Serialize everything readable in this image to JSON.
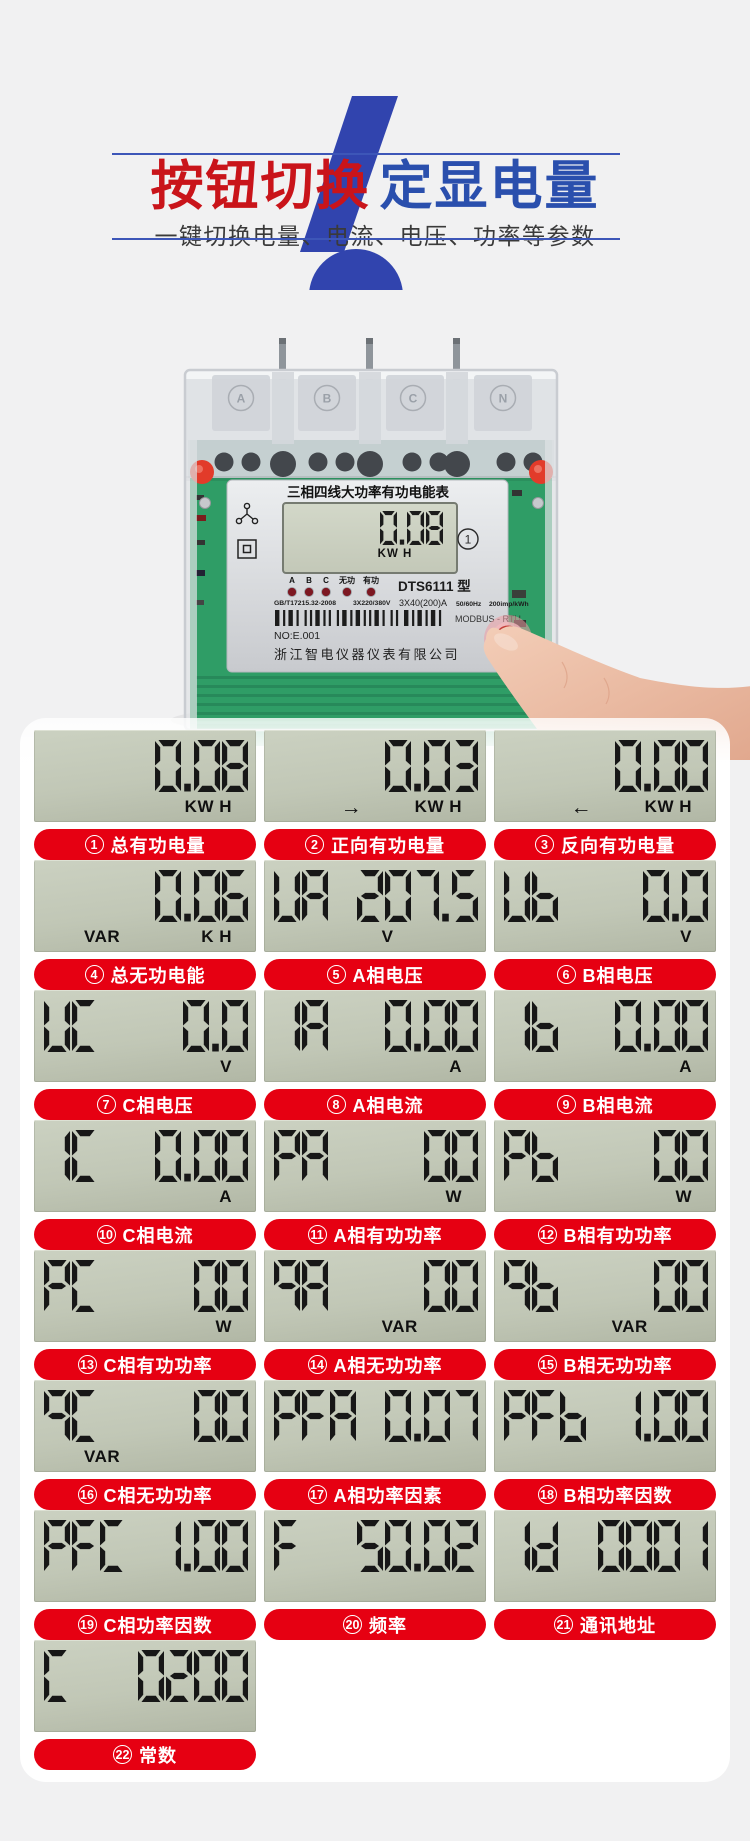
{
  "header": {
    "big_numeral": "6",
    "title_red": "按钮切换",
    "title_blue": "定显电量",
    "subtitle": "一键切换电量、电流、电压、功率等参数"
  },
  "meter": {
    "top_label": "三相四线大功率有功电能表",
    "terminals": [
      "A",
      "B",
      "C",
      "N"
    ],
    "lcd_value": "0.08",
    "lcd_unit": "KW H",
    "lcd_badge_num": "1",
    "indicators": [
      "A",
      "B",
      "C",
      "无功",
      "有功"
    ],
    "model": "DTS6111 型",
    "spec_a": "GB/T17215.32-2008",
    "spec_b": "3X220/380V",
    "spec_c": "3X40(200)A",
    "spec_d": "50/60Hz",
    "spec_e": "200imp/kWh",
    "protocol": "MODBUS - RTU",
    "serial": "NO:E.001",
    "company": "浙江智电仪器仪表有限公司"
  },
  "panels": [
    {
      "num": "1",
      "label": "总有功电量",
      "prefix": "",
      "value": "0.08",
      "arrow": "",
      "unit_left": "",
      "unit_center": "",
      "unit_right": "KW H"
    },
    {
      "num": "2",
      "label": "正向有功电量",
      "prefix": "",
      "value": "0.03",
      "arrow": "→",
      "unit_left": "",
      "unit_center": "",
      "unit_right": "KW H"
    },
    {
      "num": "3",
      "label": "反向有功电量",
      "prefix": "",
      "value": "0.00",
      "arrow": "←",
      "unit_left": "",
      "unit_center": "",
      "unit_right": "KW H"
    },
    {
      "num": "4",
      "label": "总无功电能",
      "prefix": "",
      "value": "0.06",
      "arrow": "",
      "unit_left": "VAR",
      "unit_center": "",
      "unit_right": "K H"
    },
    {
      "num": "5",
      "label": "A相电压",
      "prefix": "UA",
      "value": "207.5",
      "arrow": "",
      "unit_left": "",
      "unit_center": "V",
      "unit_right": ""
    },
    {
      "num": "6",
      "label": "B相电压",
      "prefix": "Ub",
      "value": "0.0",
      "arrow": "",
      "unit_left": "",
      "unit_center": "",
      "unit_right": "V"
    },
    {
      "num": "7",
      "label": "C相电压",
      "prefix": "UC",
      "value": "0.0",
      "arrow": "",
      "unit_left": "",
      "unit_center": "",
      "unit_right": "V"
    },
    {
      "num": "8",
      "label": "A相电流",
      "prefix": "IA",
      "value": "0.00",
      "arrow": "",
      "unit_left": "",
      "unit_center": "",
      "unit_right": "A"
    },
    {
      "num": "9",
      "label": "B相电流",
      "prefix": "Ib",
      "value": "0.00",
      "arrow": "",
      "unit_left": "",
      "unit_center": "",
      "unit_right": "A"
    },
    {
      "num": "10",
      "label": "C相电流",
      "prefix": "IC",
      "value": "0.00",
      "arrow": "",
      "unit_left": "",
      "unit_center": "",
      "unit_right": "A"
    },
    {
      "num": "11",
      "label": "A相有功功率",
      "prefix": "PA",
      "value": "00",
      "arrow": "",
      "unit_left": "",
      "unit_center": "",
      "unit_right": "W"
    },
    {
      "num": "12",
      "label": "B相有功功率",
      "prefix": "Pb",
      "value": "00",
      "arrow": "",
      "unit_left": "",
      "unit_center": "",
      "unit_right": "W"
    },
    {
      "num": "13",
      "label": "C相有功功率",
      "prefix": "PC",
      "value": "00",
      "arrow": "",
      "unit_left": "",
      "unit_center": "",
      "unit_right": "W"
    },
    {
      "num": "14",
      "label": "A相无功功率",
      "prefix": "qA",
      "value": "00",
      "arrow": "",
      "unit_left": "",
      "unit_center": "VAR",
      "unit_right": ""
    },
    {
      "num": "15",
      "label": "B相无功功率",
      "prefix": "qb",
      "value": "00",
      "arrow": "",
      "unit_left": "",
      "unit_center": "VAR",
      "unit_right": ""
    },
    {
      "num": "16",
      "label": "C相无功功率",
      "prefix": "qC",
      "value": "00",
      "arrow": "",
      "unit_left": "VAR",
      "unit_center": "",
      "unit_right": ""
    },
    {
      "num": "17",
      "label": "A相功率因素",
      "prefix": "PFA",
      "value": "0.07",
      "arrow": "",
      "unit_left": "",
      "unit_center": "",
      "unit_right": ""
    },
    {
      "num": "18",
      "label": "B相功率因数",
      "prefix": "PFb",
      "value": "1.00",
      "arrow": "",
      "unit_left": "",
      "unit_center": "",
      "unit_right": ""
    },
    {
      "num": "19",
      "label": "C相功率因数",
      "prefix": "PFC",
      "value": "1.00",
      "arrow": "",
      "unit_left": "",
      "unit_center": "",
      "unit_right": ""
    },
    {
      "num": "20",
      "label": "频率",
      "prefix": "F",
      "value": "50.02",
      "arrow": "",
      "unit_left": "",
      "unit_center": "",
      "unit_right": ""
    },
    {
      "num": "21",
      "label": "通讯地址",
      "prefix": "Id",
      "value": "0001",
      "arrow": "",
      "unit_left": "",
      "unit_center": "",
      "unit_right": ""
    },
    {
      "num": "22",
      "label": "常数",
      "prefix": "C",
      "value": "0200",
      "arrow": "",
      "unit_left": "",
      "unit_center": "",
      "unit_right": ""
    }
  ],
  "colors": {
    "pill_red": "#e60012",
    "title_red": "#c9141a",
    "title_blue": "#2a4fad",
    "numeral_blue": "#3144ae",
    "lcd_bg": "#c1c7b6",
    "pcb_green": "#2f9d66"
  }
}
